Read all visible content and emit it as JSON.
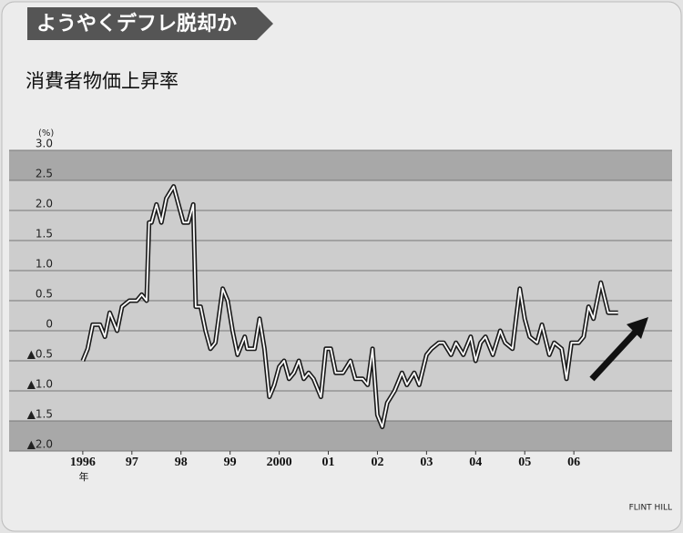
{
  "chart_data": {
    "type": "line",
    "title": "ようやくデフレ脱却か",
    "subtitle": "消費者物価上昇率",
    "y_unit": "(%)",
    "x_unit": "年",
    "credit": "FLINT HILL",
    "xlim": [
      1994.5,
      2008
    ],
    "xticks": [
      {
        "value": 1996,
        "label": "1996"
      },
      {
        "value": 1997,
        "label": "97"
      },
      {
        "value": 1998,
        "label": "98"
      },
      {
        "value": 1999,
        "label": "99"
      },
      2000,
      {
        "value": 2001,
        "label": "01"
      },
      {
        "value": 2002,
        "label": "02"
      },
      {
        "value": 2003,
        "label": "03"
      },
      {
        "value": 2004,
        "label": "04"
      },
      {
        "value": 2005,
        "label": "05"
      },
      {
        "value": 2006,
        "label": "06"
      }
    ],
    "ylim": [
      -2,
      3
    ],
    "yticks": [
      {
        "value": 3,
        "label": "3.0"
      },
      2.5,
      {
        "value": 2,
        "label": "2.0"
      },
      1.5,
      {
        "value": 1,
        "label": "1.0"
      },
      0.5,
      0,
      {
        "value": -0.5,
        "label": "▲0.5"
      },
      {
        "value": -1,
        "label": "▲1.0"
      },
      {
        "value": -1.5,
        "label": "▲1.5"
      },
      {
        "value": -2,
        "label": "▲2.0"
      }
    ],
    "grid": true,
    "color": "#1a1a1a",
    "x": [
      1996.0,
      1996.1,
      1996.2,
      1996.35,
      1996.45,
      1996.55,
      1996.7,
      1996.8,
      1996.95,
      1997.1,
      1997.2,
      1997.3,
      1997.35,
      1997.4,
      1997.5,
      1997.6,
      1997.7,
      1997.85,
      1997.95,
      1998.05,
      1998.15,
      1998.25,
      1998.3,
      1998.4,
      1998.5,
      1998.6,
      1998.7,
      1998.85,
      1998.95,
      1999.05,
      1999.15,
      1999.3,
      1999.35,
      1999.5,
      1999.6,
      1999.7,
      1999.8,
      1999.9,
      2000.0,
      2000.1,
      2000.2,
      2000.3,
      2000.4,
      2000.5,
      2000.6,
      2000.7,
      2000.85,
      2000.95,
      2001.05,
      2001.15,
      2001.3,
      2001.45,
      2001.55,
      2001.7,
      2001.8,
      2001.9,
      2002.0,
      2002.1,
      2002.2,
      2002.35,
      2002.5,
      2002.6,
      2002.75,
      2002.85,
      2003.0,
      2003.1,
      2003.25,
      2003.35,
      2003.5,
      2003.6,
      2003.75,
      2003.9,
      2004.0,
      2004.1,
      2004.2,
      2004.35,
      2004.5,
      2004.6,
      2004.75,
      2004.9,
      2005.0,
      2005.1,
      2005.25,
      2005.35,
      2005.5,
      2005.6,
      2005.75,
      2005.85,
      2005.95,
      2006.1,
      2006.2,
      2006.3,
      2006.4,
      2006.55,
      2006.7,
      2006.9
    ],
    "values": [
      -0.5,
      -0.3,
      0.1,
      0.1,
      -0.1,
      0.3,
      0.0,
      0.4,
      0.5,
      0.5,
      0.6,
      0.5,
      1.8,
      1.8,
      2.1,
      1.8,
      2.2,
      2.4,
      2.1,
      1.8,
      1.8,
      2.1,
      0.4,
      0.4,
      0.0,
      -0.3,
      -0.2,
      0.7,
      0.5,
      0.0,
      -0.4,
      -0.1,
      -0.3,
      -0.3,
      0.2,
      -0.3,
      -1.1,
      -0.9,
      -0.6,
      -0.5,
      -0.8,
      -0.7,
      -0.5,
      -0.8,
      -0.7,
      -0.8,
      -1.1,
      -0.3,
      -0.3,
      -0.7,
      -0.7,
      -0.5,
      -0.8,
      -0.8,
      -0.9,
      -0.3,
      -1.4,
      -1.6,
      -1.2,
      -1.0,
      -0.7,
      -0.9,
      -0.7,
      -0.9,
      -0.4,
      -0.3,
      -0.2,
      -0.2,
      -0.4,
      -0.2,
      -0.4,
      -0.1,
      -0.5,
      -0.2,
      -0.1,
      -0.4,
      0.0,
      -0.2,
      -0.3,
      0.7,
      0.2,
      -0.1,
      -0.2,
      0.1,
      -0.4,
      -0.2,
      -0.3,
      -0.8,
      -0.2,
      -0.2,
      -0.1,
      0.4,
      0.2,
      0.8,
      0.3,
      0.3
    ]
  }
}
